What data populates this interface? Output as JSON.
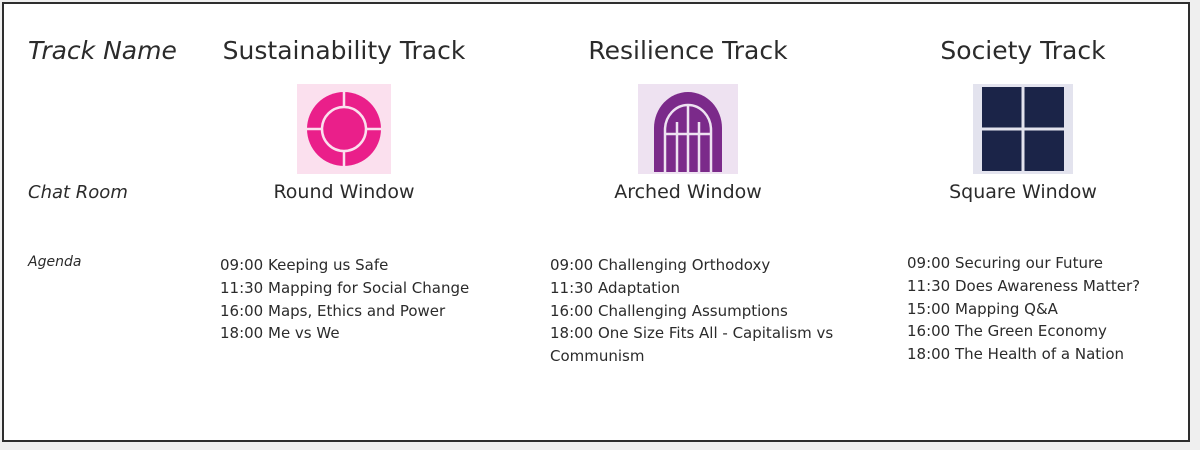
{
  "labels": {
    "track_name": "Track Name",
    "chat_room": "Chat Room",
    "agenda": "Agenda"
  },
  "tracks": [
    {
      "title": "Sustainability Track",
      "room": "Round Window",
      "icon": "round-window-icon",
      "icon_color": "#ea1f8a",
      "icon_bg": "#fbe0ee",
      "agenda": [
        "09:00 Keeping us Safe",
        "11:30 Mapping for Social Change",
        "16:00 Maps, Ethics and Power",
        "18:00 Me vs We"
      ]
    },
    {
      "title": "Resilience Track",
      "room": "Arched Window",
      "icon": "arched-window-icon",
      "icon_color": "#7b2a8a",
      "icon_bg": "#eee2f1",
      "agenda": [
        "09:00 Challenging Orthodoxy",
        "11:30 Adaptation",
        "16:00 Challenging Assumptions",
        "18:00 One Size Fits All - Capitalism vs",
        "Communism"
      ]
    },
    {
      "title": "Society Track",
      "room": "Square Window",
      "icon": "square-window-icon",
      "icon_color": "#1b2448",
      "icon_bg": "#e3e3ee",
      "agenda": [
        "09:00 Securing our Future",
        "11:30 Does Awareness Matter?",
        "15:00 Mapping Q&A",
        "16:00 The Green Economy",
        "18:00 The Health of a Nation"
      ]
    }
  ]
}
